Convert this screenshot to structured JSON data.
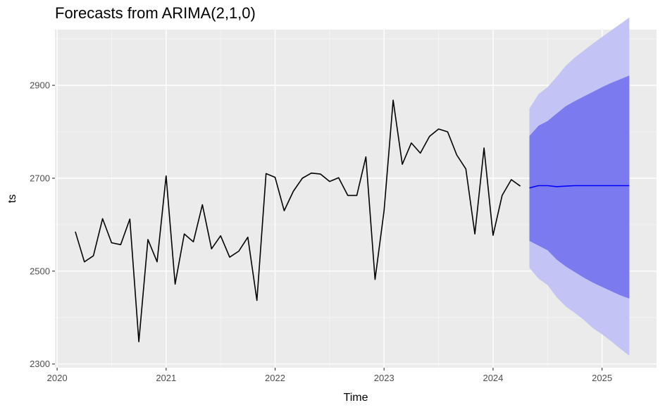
{
  "chart_data": {
    "type": "line",
    "title": "Forecasts from ARIMA(2,1,0)",
    "xlabel": "Time",
    "ylabel": "ts",
    "xlim": [
      2019.98,
      2025.5
    ],
    "ylim": [
      2292,
      3020
    ],
    "x_ticks": [
      2020,
      2021,
      2022,
      2023,
      2024,
      2025
    ],
    "y_ticks": [
      2300,
      2500,
      2700,
      2900
    ],
    "grid": true,
    "background": "#ebebeb",
    "colors": {
      "observed": "#000000",
      "forecast_mean": "#0000ff",
      "band_80": "#7b7bef",
      "band_95": "#c3c3f5"
    },
    "observed": {
      "x": [
        2020.167,
        2020.25,
        2020.333,
        2020.417,
        2020.5,
        2020.583,
        2020.667,
        2020.75,
        2020.833,
        2020.917,
        2021.0,
        2021.083,
        2021.167,
        2021.25,
        2021.333,
        2021.417,
        2021.5,
        2021.583,
        2021.667,
        2021.75,
        2021.833,
        2021.917,
        2022.0,
        2022.083,
        2022.167,
        2022.25,
        2022.333,
        2022.417,
        2022.5,
        2022.583,
        2022.667,
        2022.75,
        2022.833,
        2022.917,
        2023.0,
        2023.083,
        2023.167,
        2023.25,
        2023.333,
        2023.417,
        2023.5,
        2023.583,
        2023.667,
        2023.75,
        2023.833,
        2023.917,
        2024.0,
        2024.083,
        2024.167,
        2024.25
      ],
      "y": [
        2585,
        2520,
        2533,
        2613,
        2561,
        2557,
        2612,
        2348,
        2568,
        2520,
        2705,
        2472,
        2580,
        2563,
        2643,
        2548,
        2576,
        2530,
        2543,
        2573,
        2437,
        2710,
        2702,
        2630,
        2672,
        2700,
        2711,
        2709,
        2693,
        2701,
        2663,
        2663,
        2746,
        2482,
        2630,
        2868,
        2730,
        2776,
        2754,
        2790,
        2806,
        2800,
        2750,
        2720,
        2580,
        2765,
        2577,
        2663,
        2697,
        2683
      ]
    },
    "forecast": {
      "x": [
        2024.333,
        2024.417,
        2024.5,
        2024.583,
        2024.667,
        2024.75,
        2024.833,
        2024.917,
        2025.0,
        2025.083,
        2025.167,
        2025.25
      ],
      "mean": [
        2679,
        2684,
        2684,
        2682,
        2683,
        2684,
        2684,
        2684,
        2684,
        2684,
        2684,
        2684
      ],
      "lo80": [
        2565,
        2555,
        2545,
        2525,
        2510,
        2498,
        2486,
        2475,
        2466,
        2457,
        2448,
        2441
      ],
      "hi80": [
        2791,
        2813,
        2823,
        2839,
        2855,
        2866,
        2876,
        2886,
        2896,
        2905,
        2913,
        2921
      ],
      "lo95": [
        2507,
        2484,
        2470,
        2444,
        2424,
        2410,
        2395,
        2377,
        2364,
        2349,
        2333,
        2318
      ],
      "hi95": [
        2850,
        2881,
        2896,
        2918,
        2942,
        2960,
        2975,
        2990,
        3004,
        3018,
        3032,
        3046
      ]
    }
  }
}
